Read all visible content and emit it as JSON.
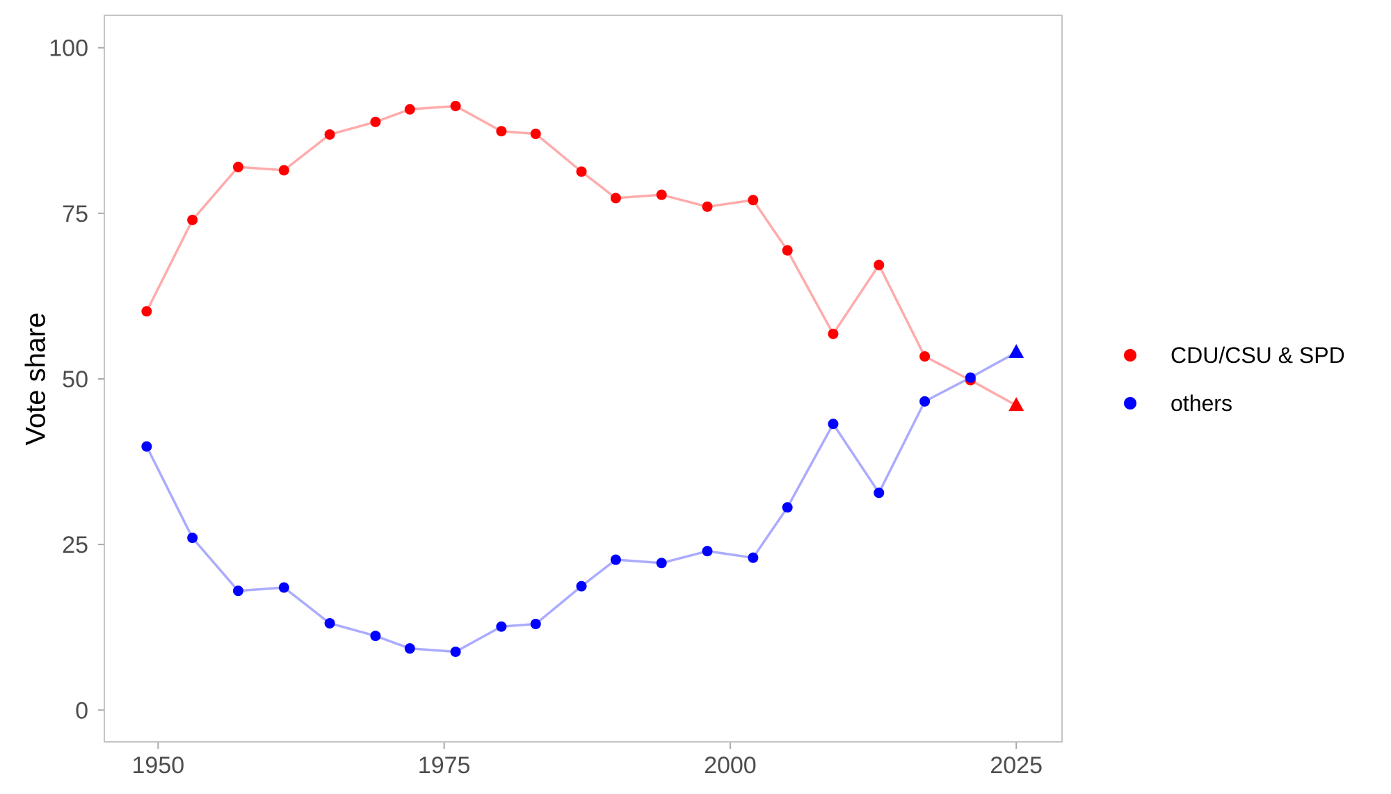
{
  "chart_data": {
    "type": "line",
    "title": "",
    "xlabel": "",
    "ylabel": "Vote share",
    "x": [
      1949,
      1953,
      1957,
      1961,
      1965,
      1969,
      1972,
      1976,
      1980,
      1983,
      1987,
      1990,
      1994,
      1998,
      2002,
      2005,
      2009,
      2013,
      2017,
      2021,
      2025
    ],
    "series": [
      {
        "name": "CDU/CSU & SPD",
        "color": "#ff0000",
        "line_opacity": 0.33,
        "marker": "circle",
        "last_point_marker": "triangle",
        "values": [
          60.2,
          74.0,
          82.0,
          81.5,
          86.9,
          88.8,
          90.7,
          91.2,
          87.4,
          87.0,
          81.3,
          77.3,
          77.8,
          76.0,
          77.0,
          69.4,
          56.8,
          67.2,
          53.4,
          49.8,
          46.0
        ]
      },
      {
        "name": "others",
        "color": "#0000ff",
        "line_opacity": 0.33,
        "marker": "circle",
        "last_point_marker": "triangle",
        "values": [
          39.8,
          26.0,
          18.0,
          18.5,
          13.1,
          11.2,
          9.3,
          8.8,
          12.6,
          13.0,
          18.7,
          22.7,
          22.2,
          24.0,
          23.0,
          30.6,
          43.2,
          32.8,
          46.6,
          50.2,
          54.0
        ]
      }
    ],
    "x_tick_values": [
      1950,
      1975,
      2000,
      2025
    ],
    "x_tick_labels": [
      "1950",
      "1975",
      "2000",
      "2025"
    ],
    "y_tick_values": [
      0,
      25,
      50,
      75,
      100
    ],
    "y_tick_labels": [
      "0",
      "25",
      "50",
      "75",
      "100"
    ],
    "xlim": [
      1945.3,
      2029.0
    ],
    "ylim": [
      -4.8,
      104.9
    ],
    "grid": false,
    "legend_position": "right",
    "colors": {
      "background": "#ffffff",
      "panel_border": "#c4c4c4",
      "tick_mark": "#a8a8a8",
      "tick_label": "#4d4d4d",
      "axis_title": "#000000"
    }
  }
}
